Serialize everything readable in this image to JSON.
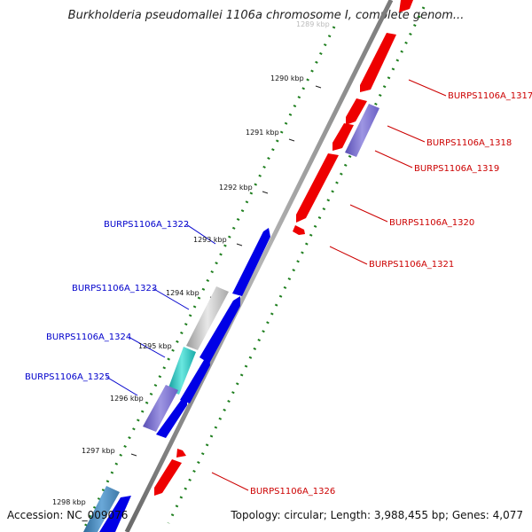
{
  "title": "Burkholderia pseudomallei 1106a chromosome I, complete genom...",
  "accession_text": "Accession: NC_009076",
  "summary_text": "Topology: circular; Length: 3,988,455 bp; Genes: 4,077",
  "colors": {
    "backbone": "#8a8a8a",
    "forward_cds": "#0000e6",
    "reverse_cds": "#ee0000",
    "dot_track": "#1f7f1f",
    "tick": "#000000",
    "label_forward": "#0000cc",
    "label_reverse": "#cc0000"
  },
  "ticks": [
    {
      "label": "1289 kbp"
    },
    {
      "label": "1290 kbp"
    },
    {
      "label": "1291 kbp"
    },
    {
      "label": "1292 kbp"
    },
    {
      "label": "1293 kbp"
    },
    {
      "label": "1294 kbp"
    },
    {
      "label": "1295 kbp"
    },
    {
      "label": "1296 kbp"
    },
    {
      "label": "1297 kbp"
    },
    {
      "label": "1298 kbp"
    }
  ],
  "gene_labels": [
    {
      "label": "BURPS1106A_1317",
      "strand": "reverse"
    },
    {
      "label": "BURPS1106A_1318",
      "strand": "reverse"
    },
    {
      "label": "BURPS1106A_1319",
      "strand": "reverse"
    },
    {
      "label": "BURPS1106A_1320",
      "strand": "reverse"
    },
    {
      "label": "BURPS1106A_1321",
      "strand": "reverse"
    },
    {
      "label": "BURPS1106A_1322",
      "strand": "forward"
    },
    {
      "label": "BURPS1106A_1323",
      "strand": "forward"
    },
    {
      "label": "BURPS1106A_1324",
      "strand": "forward"
    },
    {
      "label": "BURPS1106A_1325",
      "strand": "forward"
    },
    {
      "label": "BURPS1106A_1326",
      "strand": "reverse"
    }
  ]
}
